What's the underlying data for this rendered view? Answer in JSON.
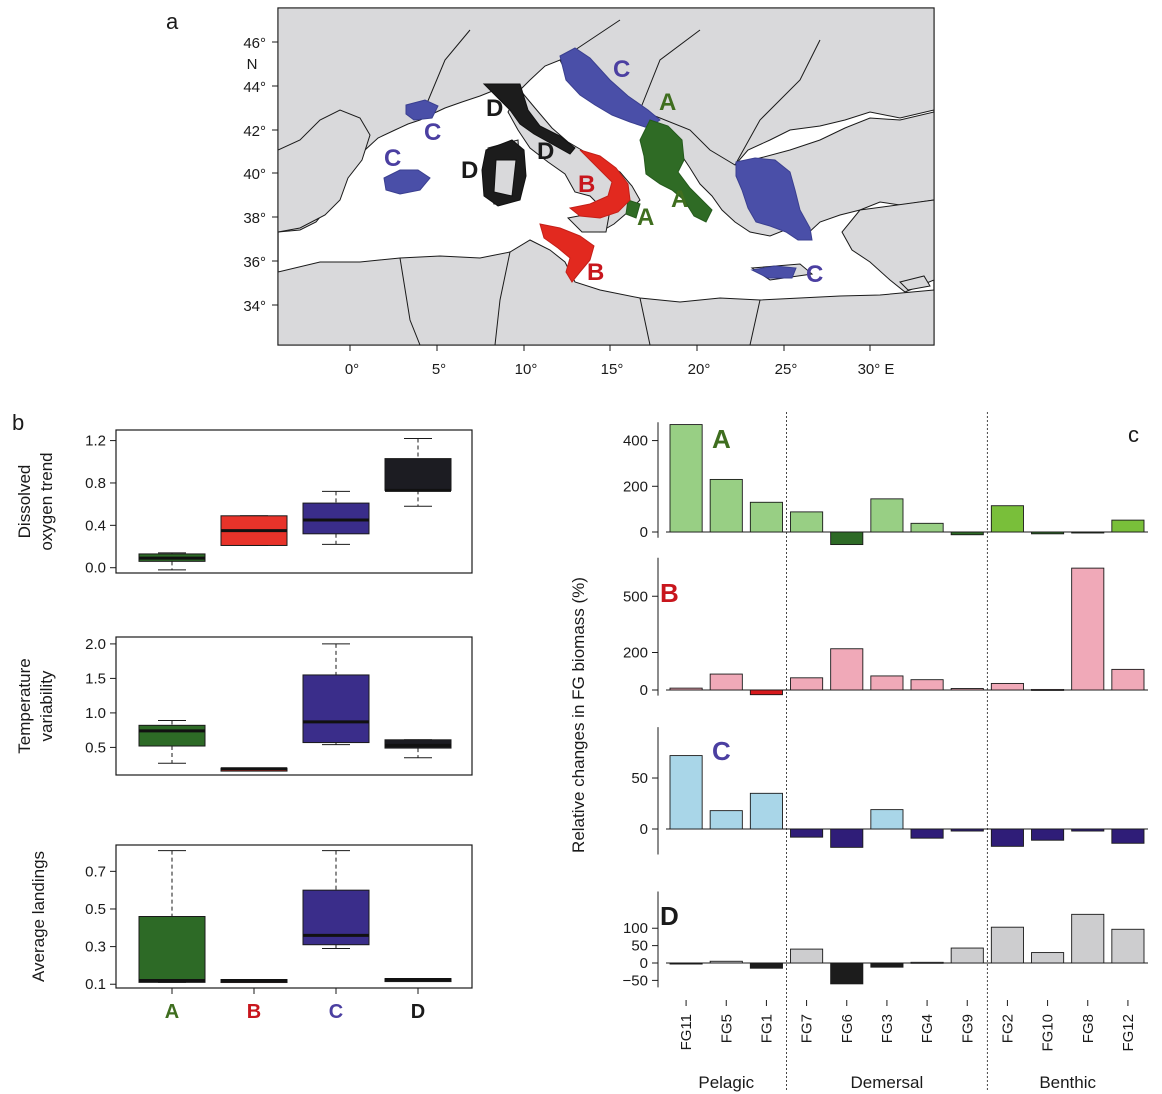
{
  "colors": {
    "A": "#2d6a26",
    "B": "#e8332a",
    "C": "#3a2d8a",
    "D": "#1c1c22",
    "A_label": "#3f6e1f",
    "B_label": "#c8161d",
    "C_label": "#4b3fa1",
    "D_label": "#1a1a1a",
    "map_land": "#d8d8da",
    "map_C": "#4a4fa8",
    "map_A": "#2f6b25",
    "map_B": "#e2291f",
    "map_D": "#1c1c1c"
  },
  "panel_labels": {
    "a": "a",
    "b": "b",
    "c": "c"
  },
  "map": {
    "lon_ticks": [
      "0°",
      "5°",
      "10°",
      "15°",
      "20°",
      "25°",
      "30° E"
    ],
    "lat_ticks": [
      "46°",
      "44°",
      "42°",
      "40°",
      "38°",
      "36°",
      "34°"
    ],
    "lat_unit": "N",
    "region_labels": [
      "C",
      "C",
      "C",
      "C",
      "D",
      "D",
      "D",
      "B",
      "B",
      "A",
      "A",
      "A"
    ]
  },
  "chart_data": [
    {
      "type": "box",
      "ylabel": [
        "Dissolved",
        "oxygen trend"
      ],
      "categories": [
        "A",
        "B",
        "C",
        "D"
      ],
      "yticks": [
        "0.0",
        "0.4",
        "0.8",
        "1.2"
      ],
      "ylim": [
        -0.05,
        1.3
      ],
      "boxes": [
        {
          "min": -0.02,
          "q1": 0.06,
          "median": 0.09,
          "q3": 0.13,
          "max": 0.14
        },
        {
          "min": 0.21,
          "q1": 0.21,
          "median": 0.35,
          "q3": 0.49,
          "max": 0.49
        },
        {
          "min": 0.22,
          "q1": 0.32,
          "median": 0.45,
          "q3": 0.61,
          "max": 0.72
        },
        {
          "min": 0.58,
          "q1": 0.73,
          "median": 0.73,
          "q3": 1.03,
          "max": 1.22
        }
      ]
    },
    {
      "type": "box",
      "ylabel": [
        "Temperature",
        "variability"
      ],
      "categories": [
        "A",
        "B",
        "C",
        "D"
      ],
      "yticks": [
        "0.5",
        "1.0",
        "1.5",
        "2.0"
      ],
      "ylim": [
        0.1,
        2.1
      ],
      "boxes": [
        {
          "min": 0.27,
          "q1": 0.52,
          "median": 0.74,
          "q3": 0.82,
          "max": 0.89
        },
        {
          "min": 0.18,
          "q1": 0.18,
          "median": 0.19,
          "q3": 0.2,
          "max": 0.2
        },
        {
          "min": 0.54,
          "q1": 0.57,
          "median": 0.87,
          "q3": 1.55,
          "max": 2.0
        },
        {
          "min": 0.35,
          "q1": 0.49,
          "median": 0.53,
          "q3": 0.61,
          "max": 0.61
        }
      ]
    },
    {
      "type": "box",
      "ylabel": [
        "Average landings"
      ],
      "categories": [
        "A",
        "B",
        "C",
        "D"
      ],
      "yticks": [
        "0.1",
        "0.3",
        "0.5",
        "0.7"
      ],
      "ylim": [
        0.08,
        0.84
      ],
      "boxes": [
        {
          "min": 0.11,
          "q1": 0.11,
          "median": 0.12,
          "q3": 0.46,
          "max": 0.81
        },
        {
          "min": 0.115,
          "q1": 0.115,
          "median": 0.12,
          "q3": 0.125,
          "max": 0.125
        },
        {
          "min": 0.29,
          "q1": 0.31,
          "median": 0.36,
          "q3": 0.6,
          "max": 0.81
        },
        {
          "min": 0.12,
          "q1": 0.12,
          "median": 0.125,
          "q3": 0.13,
          "max": 0.13
        }
      ]
    },
    {
      "type": "bar",
      "ylabel": "Relative changes in FG biomass (%)",
      "categories": [
        "FG11",
        "FG5",
        "FG1",
        "FG7",
        "FG6",
        "FG3",
        "FG4",
        "FG9",
        "FG2",
        "FG10",
        "FG8",
        "FG12"
      ],
      "groups": [
        {
          "name": "Pelagic",
          "count": 3
        },
        {
          "name": "Demersal",
          "count": 5
        },
        {
          "name": "Benthic",
          "count": 4
        }
      ],
      "series": [
        {
          "name": "A",
          "yticks": [
            "0",
            "200",
            "400"
          ],
          "ylim": [
            -25,
            490
          ],
          "values": [
            470,
            230,
            130,
            88,
            -55,
            145,
            38,
            -12,
            115,
            -8,
            -2,
            52
          ]
        },
        {
          "name": "B",
          "yticks": [
            "0",
            "200",
            "500"
          ],
          "ylim": [
            -30,
            720
          ],
          "values": [
            10,
            85,
            -25,
            65,
            220,
            75,
            55,
            8,
            35,
            3,
            650,
            110
          ]
        },
        {
          "name": "C",
          "yticks": [
            "0",
            "50"
          ],
          "ylim": [
            -25,
            102
          ],
          "values": [
            72,
            18,
            35,
            -8,
            -18,
            19,
            -9,
            -2,
            -17,
            -11,
            -2,
            -14
          ]
        },
        {
          "name": "D",
          "yticks": [
            "−50",
            "0",
            "50",
            "100"
          ],
          "ylim": [
            -70,
            210
          ],
          "values": [
            -3,
            5,
            -15,
            40,
            -60,
            -12,
            2,
            43,
            103,
            30,
            140,
            97
          ]
        }
      ]
    }
  ]
}
